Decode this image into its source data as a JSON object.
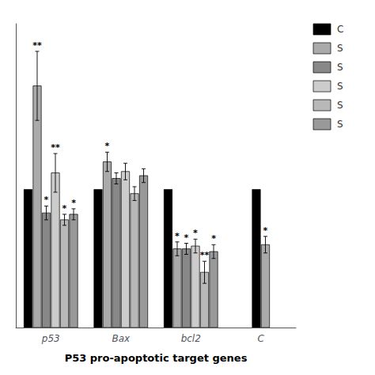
{
  "chart_data": {
    "type": "bar",
    "x_label": "P53 pro-apoptotic target genes",
    "categories": [
      "p53",
      "Bax",
      "bcl2",
      "C"
    ],
    "series": [
      {
        "name": "C",
        "color": "#000000",
        "values": [
          1.0,
          1.0,
          1.0,
          1.0
        ],
        "errors": [
          0.0,
          0.0,
          0.0,
          0.0
        ],
        "annotations": [
          null,
          null,
          null,
          null
        ]
      },
      {
        "name": "S",
        "color": "#aaaaaa",
        "values": [
          1.75,
          1.2,
          0.57,
          0.6
        ],
        "errors": [
          0.25,
          0.07,
          0.05,
          0.06
        ],
        "annotations": [
          "**",
          "*",
          "*",
          "*"
        ]
      },
      {
        "name": "S",
        "color": "#888888",
        "values": [
          0.83,
          1.08,
          0.57,
          null
        ],
        "errors": [
          0.05,
          0.04,
          0.04,
          null
        ],
        "annotations": [
          "*",
          null,
          "*",
          null
        ]
      },
      {
        "name": "S",
        "color": "#cccccc",
        "values": [
          1.12,
          1.13,
          0.59,
          null
        ],
        "errors": [
          0.14,
          0.06,
          0.05,
          null
        ],
        "annotations": [
          "**",
          null,
          "*",
          null
        ]
      },
      {
        "name": "S",
        "color": "#b8b8b8",
        "values": [
          0.78,
          0.97,
          0.4,
          null
        ],
        "errors": [
          0.04,
          0.05,
          0.08,
          null
        ],
        "annotations": [
          "*",
          null,
          "**",
          null
        ]
      },
      {
        "name": "S",
        "color": "#999999",
        "values": [
          0.82,
          1.1,
          0.55,
          null
        ],
        "errors": [
          0.04,
          0.05,
          0.05,
          null
        ],
        "annotations": [
          "*",
          null,
          "*",
          null
        ]
      }
    ],
    "ylim": [
      0,
      2.2
    ],
    "tick_labels": "x",
    "grid": false,
    "legend": "right"
  }
}
